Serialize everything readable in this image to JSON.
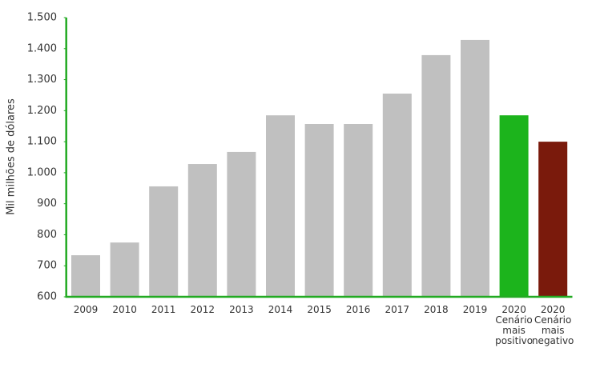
{
  "chart_data": {
    "type": "bar",
    "y_label": "Mil milhões de dólares",
    "categories": [
      "2009",
      "2010",
      "2011",
      "2012",
      "2013",
      "2014",
      "2015",
      "2016",
      "2017",
      "2018",
      "2019",
      "2020\nCenário\nmais\npositivo",
      "2020\nCenário\nmais\nnegativo"
    ],
    "values": [
      734,
      775,
      956,
      1028,
      1067,
      1185,
      1157,
      1157,
      1255,
      1379,
      1428,
      1185,
      1100
    ],
    "colors": [
      "#c0c0c0",
      "#c0c0c0",
      "#c0c0c0",
      "#c0c0c0",
      "#c0c0c0",
      "#c0c0c0",
      "#c0c0c0",
      "#c0c0c0",
      "#c0c0c0",
      "#c0c0c0",
      "#c0c0c0",
      "#1cb41c",
      "#7a1a0c"
    ],
    "axis_color": "#22aa22",
    "ylim": [
      600,
      1500
    ],
    "yticks": [
      600,
      700,
      800,
      900,
      {
        "value": 1000,
        "label": "1.000"
      },
      {
        "value": 1100,
        "label": "1.100"
      },
      {
        "value": 1200,
        "label": "1.200"
      },
      {
        "value": 1300,
        "label": "1.300"
      },
      {
        "value": 1400,
        "label": "1.400"
      },
      {
        "value": 1500,
        "label": "1.500"
      }
    ],
    "grid": false
  }
}
